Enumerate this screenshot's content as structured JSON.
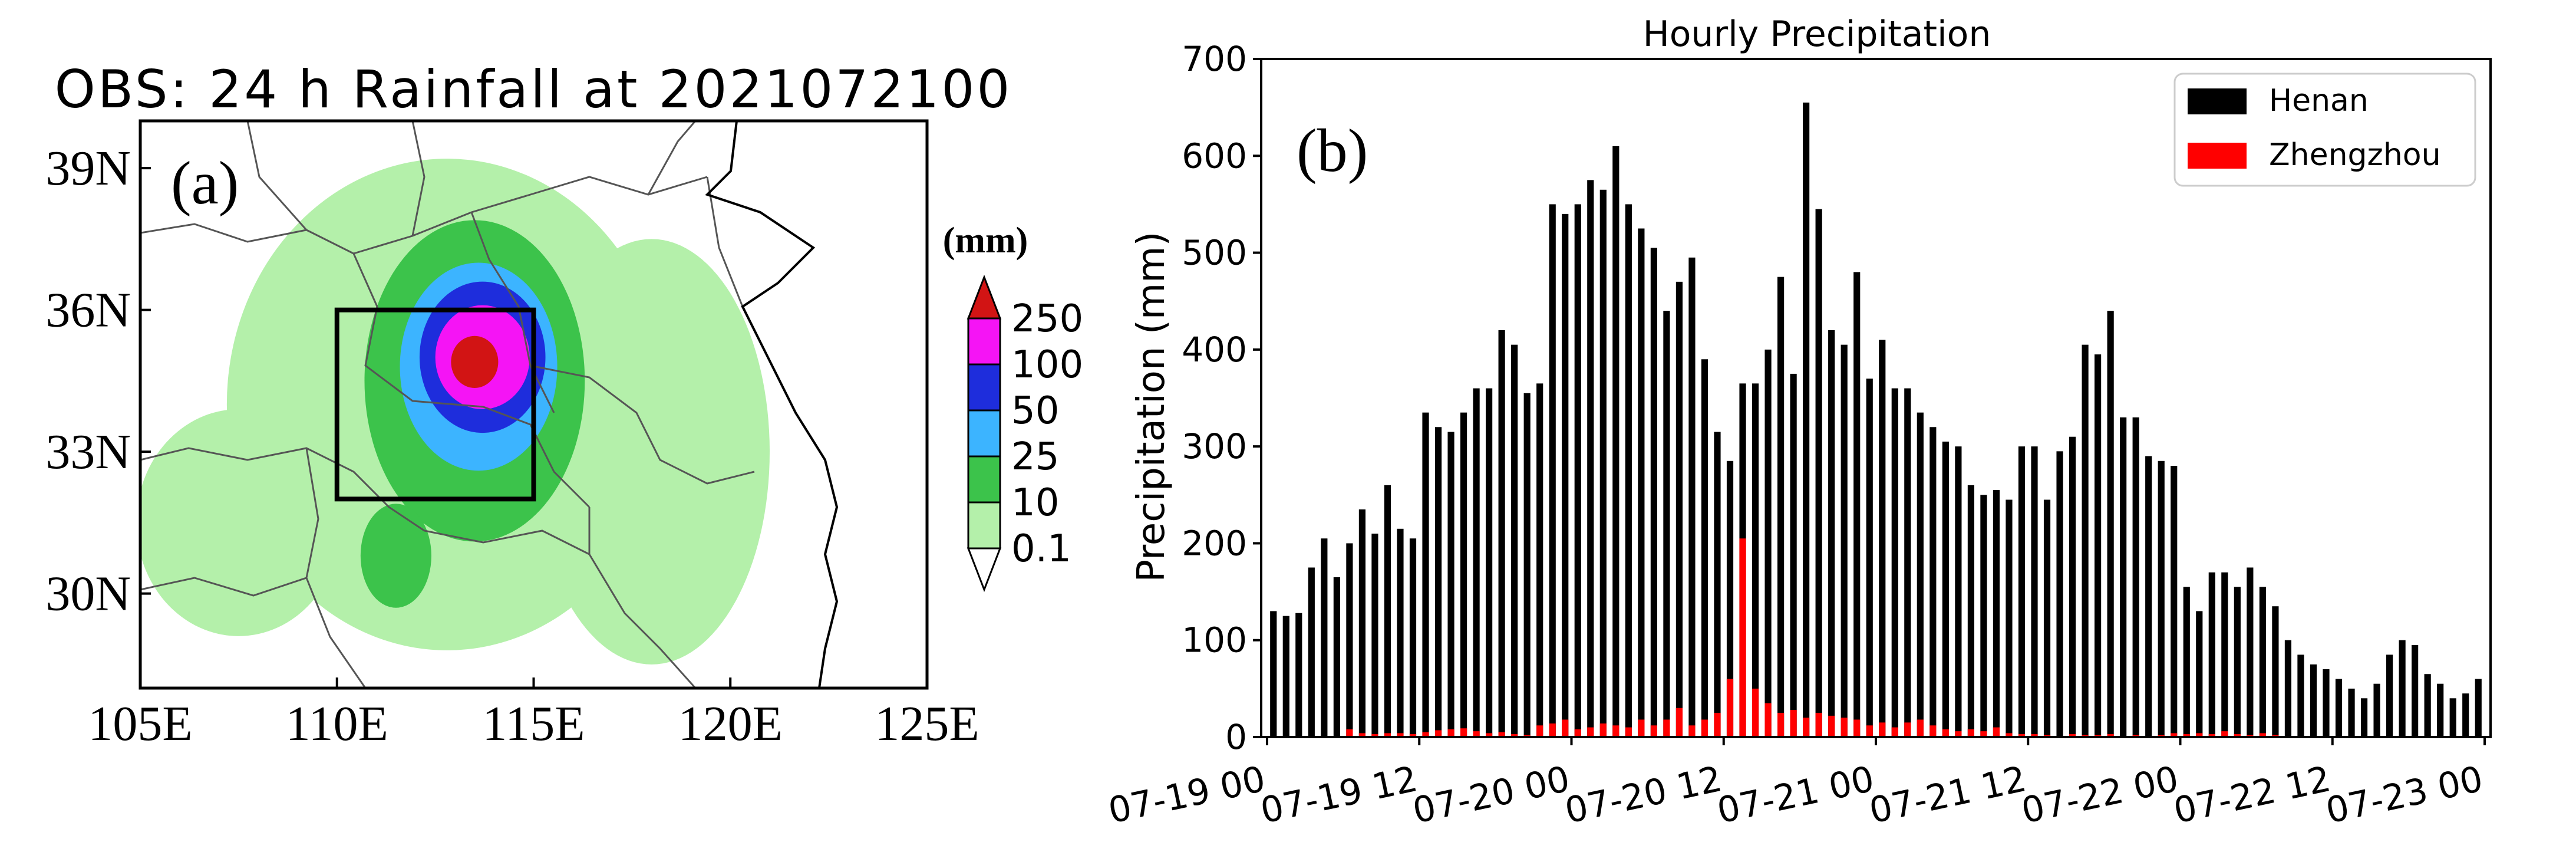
{
  "colors": {
    "henan": "#000000",
    "zhengzhou": "#ff0000",
    "rain_0_1": "#b4f0aa",
    "rain_10": "#3cc34b",
    "rain_25": "#3cb4ff",
    "rain_50": "#1e2ddc",
    "rain_100": "#f514f5",
    "rain_250": "#d21414"
  },
  "chart_data": [
    {
      "type": "heatmap",
      "title": "OBS: 24 h Rainfall at 2021072100",
      "panel_label": "(a)",
      "units_label": "(mm)",
      "x_ticks": [
        "105E",
        "110E",
        "115E",
        "120E",
        "125E"
      ],
      "x_values": [
        105,
        110,
        115,
        120,
        125
      ],
      "y_ticks": [
        "39N",
        "36N",
        "33N",
        "30N"
      ],
      "y_values": [
        39,
        36,
        33,
        30
      ],
      "xlim": [
        105,
        125
      ],
      "ylim": [
        28,
        40
      ],
      "colorbar_levels": [
        "0.1",
        "10",
        "25",
        "50",
        "100",
        "250"
      ],
      "highlight_box": {
        "lon": [
          110,
          115
        ],
        "lat": [
          32,
          36
        ]
      },
      "rain_regions": [
        {
          "level": "0.1",
          "center_lon": 112.8,
          "center_lat": 34.0,
          "r_lon": 5.6,
          "r_lat": 5.2
        },
        {
          "level": "0.1",
          "center_lon": 107.5,
          "center_lat": 31.5,
          "r_lon": 2.6,
          "r_lat": 2.4
        },
        {
          "level": "0.1",
          "center_lon": 118.0,
          "center_lat": 33.0,
          "r_lon": 3.0,
          "r_lat": 4.5
        },
        {
          "level": "10",
          "center_lon": 113.5,
          "center_lat": 34.5,
          "r_lon": 2.8,
          "r_lat": 3.4
        },
        {
          "level": "10",
          "center_lon": 111.5,
          "center_lat": 30.8,
          "r_lon": 0.9,
          "r_lat": 1.1
        },
        {
          "level": "25",
          "center_lon": 113.6,
          "center_lat": 34.8,
          "r_lon": 2.0,
          "r_lat": 2.2
        },
        {
          "level": "50",
          "center_lon": 113.7,
          "center_lat": 35.0,
          "r_lon": 1.6,
          "r_lat": 1.6
        },
        {
          "level": "100",
          "center_lon": 113.7,
          "center_lat": 35.0,
          "r_lon": 1.2,
          "r_lat": 1.1
        },
        {
          "level": "250",
          "center_lon": 113.5,
          "center_lat": 34.9,
          "r_lon": 0.6,
          "r_lat": 0.55
        }
      ]
    },
    {
      "type": "bar",
      "title": "Hourly Precipitation",
      "panel_label": "(b)",
      "xlabel": "",
      "ylabel": "Precipitation (mm)",
      "ylim": [
        0,
        700
      ],
      "y_ticks": [
        0,
        100,
        200,
        300,
        400,
        500,
        600,
        700
      ],
      "x_ticks": [
        {
          "label": "07-19 00",
          "hour": 0
        },
        {
          "label": "07-19 12",
          "hour": 12
        },
        {
          "label": "07-20 00",
          "hour": 24
        },
        {
          "label": "07-20 12",
          "hour": 36
        },
        {
          "label": "07-21 00",
          "hour": 48
        },
        {
          "label": "07-21 12",
          "hour": 60
        },
        {
          "label": "07-22 00",
          "hour": 72
        },
        {
          "label": "07-22 12",
          "hour": 84
        },
        {
          "label": "07-23 00",
          "hour": 96
        }
      ],
      "legend_position": "top-right",
      "series": [
        {
          "name": "Henan",
          "values": [
            130,
            125,
            128,
            175,
            205,
            165,
            200,
            235,
            210,
            260,
            215,
            205,
            335,
            320,
            315,
            335,
            360,
            360,
            420,
            405,
            355,
            365,
            550,
            540,
            550,
            575,
            565,
            610,
            550,
            525,
            505,
            440,
            470,
            495,
            390,
            315,
            285,
            365,
            365,
            400,
            475,
            375,
            655,
            545,
            420,
            405,
            480,
            370,
            410,
            360,
            360,
            335,
            320,
            305,
            300,
            260,
            250,
            255,
            245,
            300,
            300,
            245,
            295,
            310,
            405,
            395,
            440,
            330,
            330,
            290,
            285,
            280,
            155,
            130,
            170,
            170,
            155,
            175,
            155,
            135,
            100,
            85,
            75,
            70,
            60,
            50,
            40,
            55,
            85,
            100,
            95,
            65,
            55,
            40,
            45,
            60
          ]
        },
        {
          "name": "Zhengzhou",
          "values": [
            0,
            0,
            0,
            0,
            0,
            0,
            8,
            4,
            3,
            4,
            4,
            3,
            5,
            7,
            8,
            9,
            6,
            4,
            5,
            3,
            2,
            12,
            14,
            18,
            8,
            10,
            14,
            12,
            10,
            18,
            12,
            18,
            30,
            12,
            18,
            25,
            60,
            205,
            50,
            35,
            25,
            28,
            20,
            25,
            22,
            20,
            18,
            12,
            15,
            10,
            15,
            18,
            12,
            8,
            6,
            8,
            6,
            10,
            4,
            3,
            3,
            2,
            0,
            3,
            2,
            2,
            3,
            0,
            2,
            0,
            2,
            4,
            3,
            4,
            3,
            6,
            3,
            2,
            4,
            2,
            1,
            0,
            0,
            1,
            0,
            0,
            0,
            0,
            0,
            0,
            0,
            0,
            0,
            0,
            0,
            0
          ]
        }
      ]
    }
  ]
}
